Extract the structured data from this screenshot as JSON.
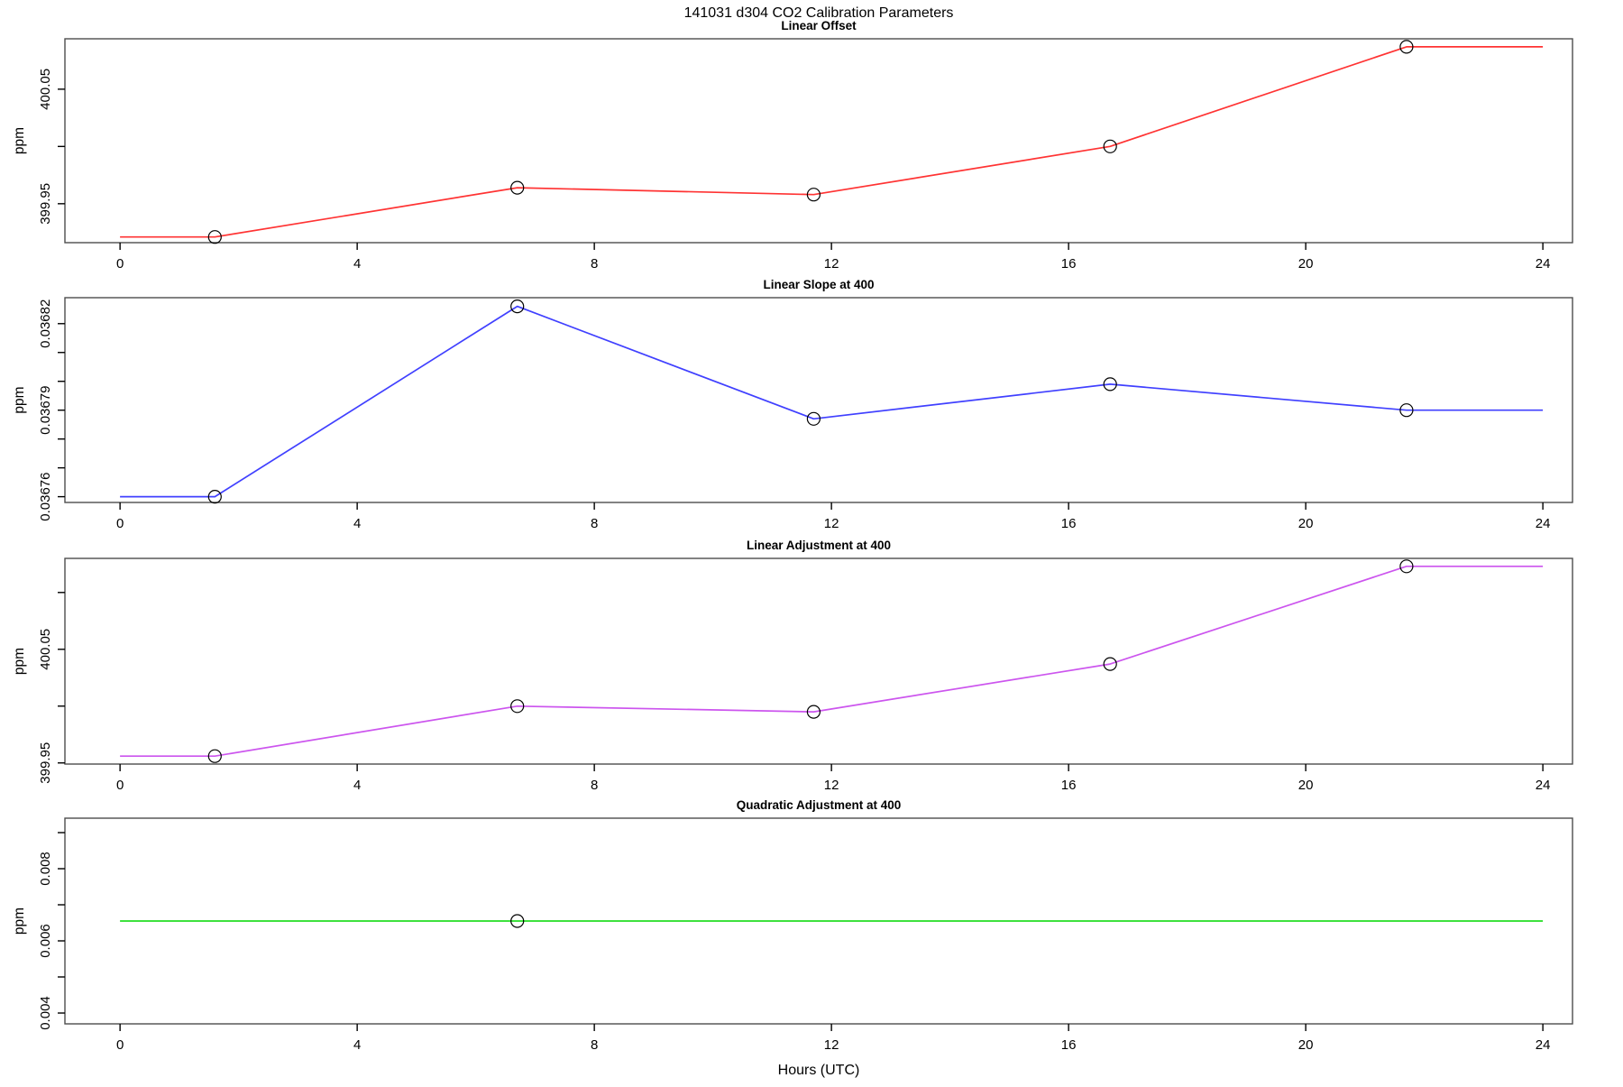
{
  "suptitle": "141031   d304   CO2 Calibration Parameters",
  "xlabel": "Hours (UTC)",
  "chart_data": [
    {
      "type": "line",
      "title": "Linear Offset",
      "ylabel": "ppm",
      "color": "#ff3333",
      "x": [
        1.6,
        6.7,
        11.7,
        16.7,
        21.7
      ],
      "values": [
        399.921,
        399.964,
        399.958,
        400.0,
        400.087
      ],
      "marker_indices": [
        0,
        1,
        2,
        3,
        4
      ],
      "line_extends_to_xlim": true,
      "ylim": [
        399.916,
        400.094
      ],
      "yticks": [
        {
          "v": 399.95,
          "label": "399.95"
        },
        {
          "v": 400.0,
          "label": ""
        },
        {
          "v": 400.05,
          "label": "400.05"
        }
      ],
      "xticks": [
        0,
        4,
        8,
        12,
        16,
        20,
        24
      ],
      "xlim": [
        -0.93,
        24.5
      ],
      "grid": false,
      "legend": "none"
    },
    {
      "type": "line",
      "title": "Linear Slope at 400",
      "ylabel": "ppm",
      "color": "#4040ff",
      "x": [
        1.6,
        6.7,
        11.7,
        16.7,
        21.7
      ],
      "values": [
        0.03676,
        0.036826,
        0.036787,
        0.036799,
        0.03679
      ],
      "marker_indices": [
        0,
        1,
        2,
        3,
        4
      ],
      "line_extends_to_xlim": true,
      "ylim": [
        0.036758,
        0.036829
      ],
      "yticks": [
        {
          "v": 0.03676,
          "label": "0.03676"
        },
        {
          "v": 0.03677,
          "label": ""
        },
        {
          "v": 0.03678,
          "label": ""
        },
        {
          "v": 0.03679,
          "label": "0.03679"
        },
        {
          "v": 0.0368,
          "label": ""
        },
        {
          "v": 0.03681,
          "label": ""
        },
        {
          "v": 0.03682,
          "label": "0.03682"
        }
      ],
      "xticks": [
        0,
        4,
        8,
        12,
        16,
        20,
        24
      ],
      "xlim": [
        -0.93,
        24.5
      ],
      "grid": false,
      "legend": "none"
    },
    {
      "type": "line",
      "title": "Linear Adjustment at 400",
      "ylabel": "ppm",
      "color": "#cc55ee",
      "x": [
        1.6,
        6.7,
        11.7,
        16.7,
        21.7
      ],
      "values": [
        399.956,
        400.0,
        399.995,
        400.037,
        400.123
      ],
      "marker_indices": [
        0,
        1,
        2,
        3,
        4
      ],
      "line_extends_to_xlim": true,
      "ylim": [
        399.949,
        400.13
      ],
      "yticks": [
        {
          "v": 399.95,
          "label": "399.95"
        },
        {
          "v": 400.0,
          "label": ""
        },
        {
          "v": 400.05,
          "label": "400.05"
        },
        {
          "v": 400.1,
          "label": ""
        }
      ],
      "xticks": [
        0,
        4,
        8,
        12,
        16,
        20,
        24
      ],
      "xlim": [
        -0.93,
        24.5
      ],
      "grid": false,
      "legend": "none"
    },
    {
      "type": "line",
      "title": "Quadratic Adjustment at 400",
      "ylabel": "ppm",
      "color": "#22dd22",
      "x": [
        1.6,
        6.7,
        11.7,
        16.7,
        21.7
      ],
      "values": [
        0.00655,
        0.00655,
        0.00655,
        0.00655,
        0.00655
      ],
      "marker_indices": [
        1
      ],
      "line_extends_to_xlim": true,
      "ylim": [
        0.0037,
        0.0094
      ],
      "yticks": [
        {
          "v": 0.004,
          "label": "0.004"
        },
        {
          "v": 0.005,
          "label": ""
        },
        {
          "v": 0.006,
          "label": "0.006"
        },
        {
          "v": 0.007,
          "label": ""
        },
        {
          "v": 0.008,
          "label": "0.008"
        },
        {
          "v": 0.009,
          "label": ""
        }
      ],
      "xticks": [
        0,
        4,
        8,
        12,
        16,
        20,
        24
      ],
      "xlim": [
        -0.93,
        24.5
      ],
      "grid": false,
      "legend": "none"
    }
  ]
}
